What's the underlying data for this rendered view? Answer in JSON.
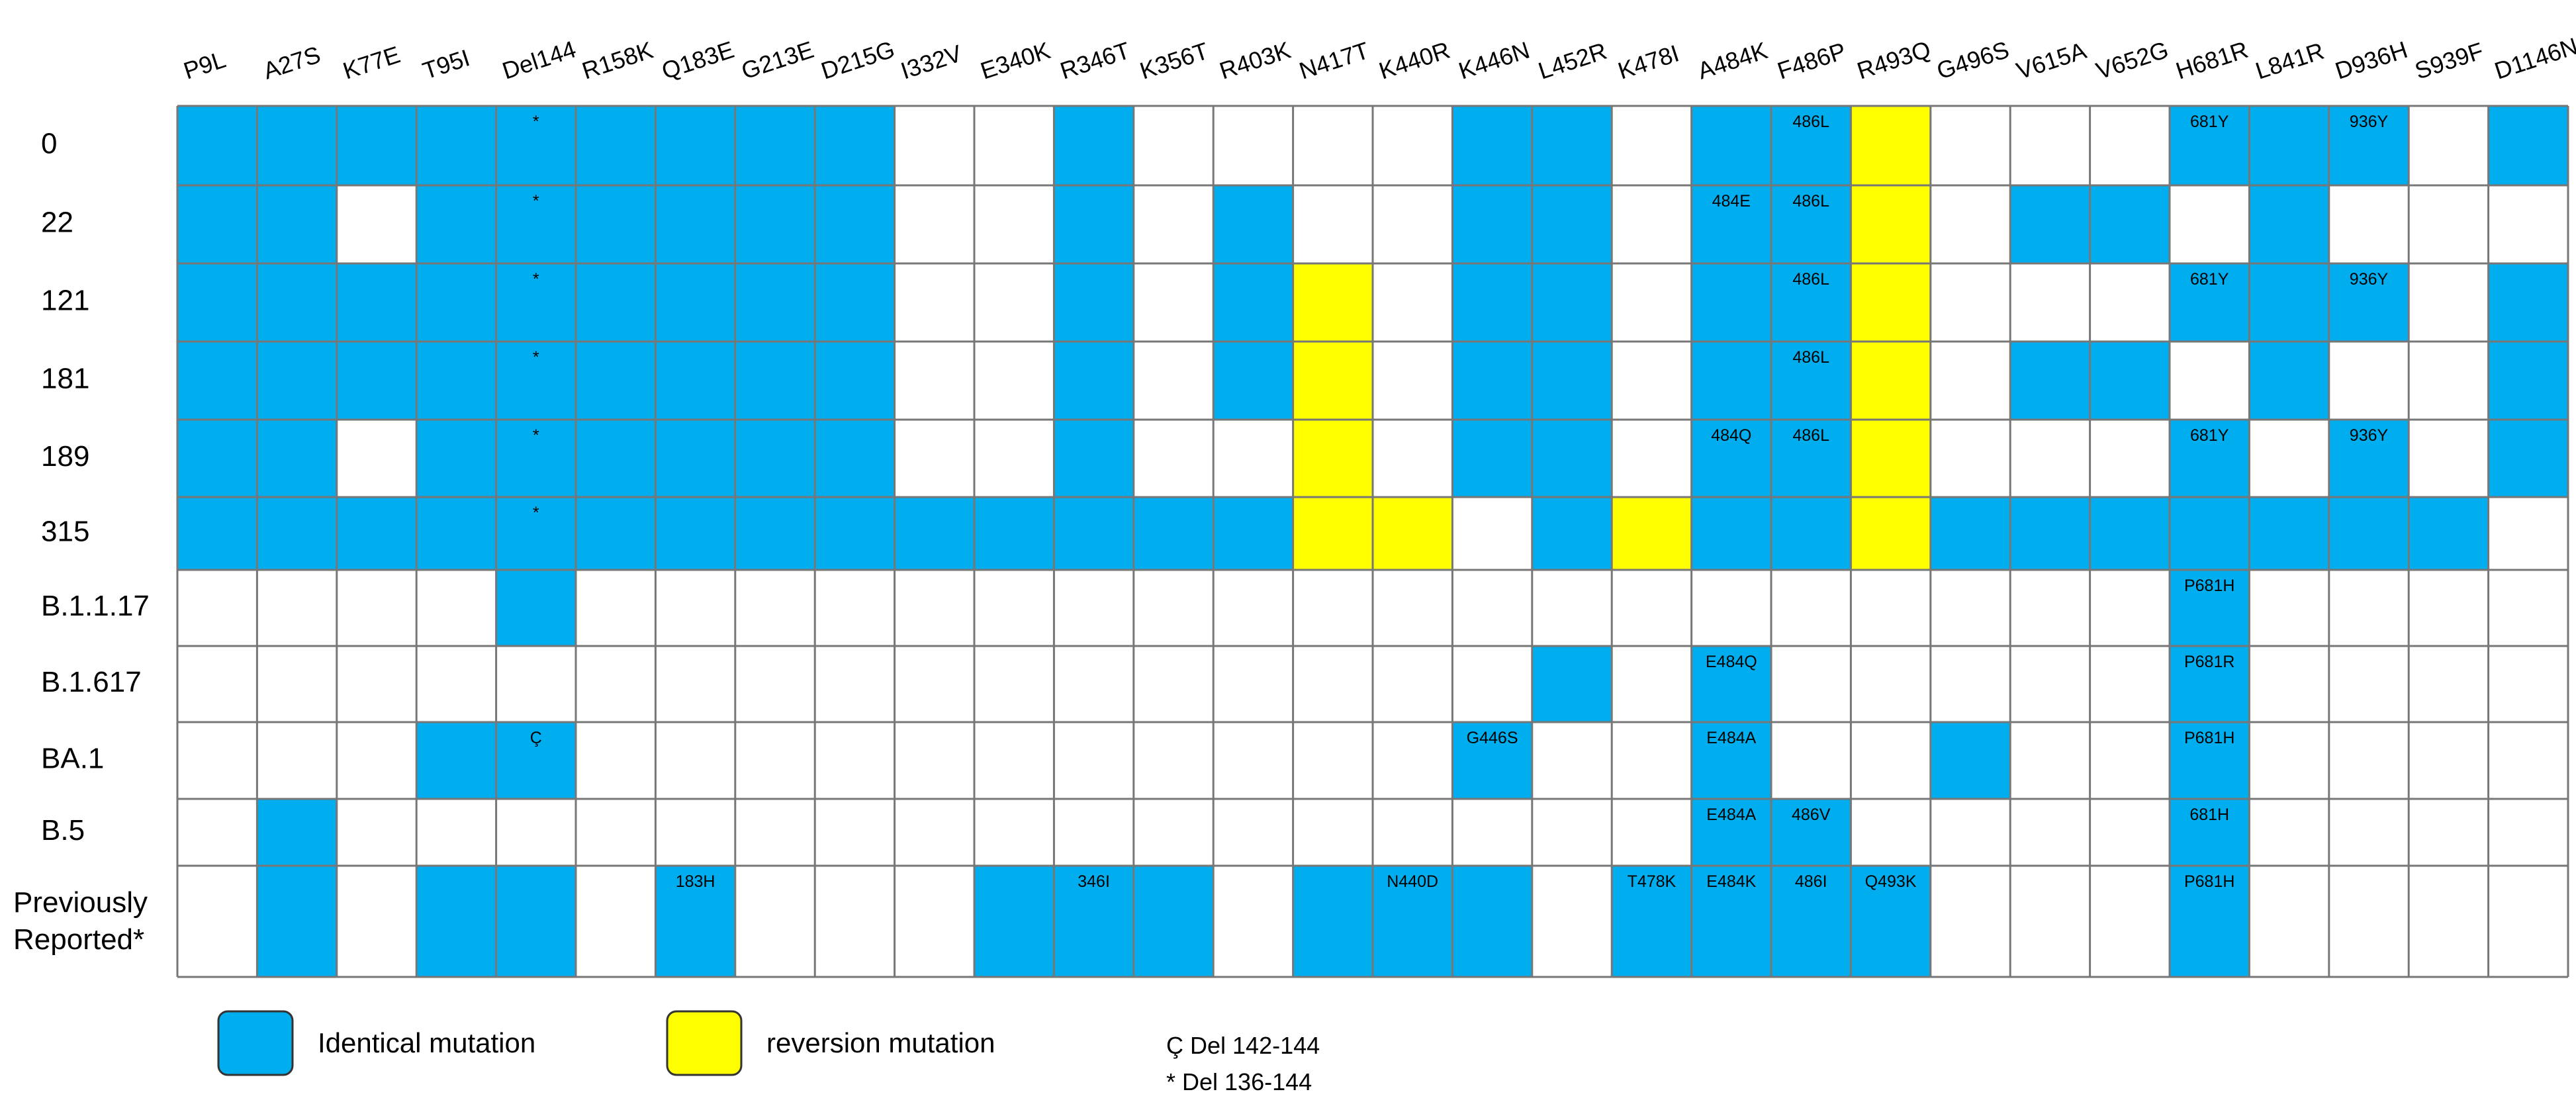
{
  "chart_data": {
    "type": "heatmap",
    "columns": [
      "P9L",
      "A27S",
      "K77E",
      "T95I",
      "Del144",
      "R158K",
      "Q183E",
      "G213E",
      "D215G",
      "I332V",
      "E340K",
      "R346T",
      "K356T",
      "R403K",
      "N417T",
      "K440R",
      "K446N",
      "L452R",
      "K478I",
      "A484K",
      "F486P",
      "R493Q",
      "G496S",
      "V615A",
      "V652G",
      "H681R",
      "L841R",
      "D936H",
      "S939F",
      "D1146N"
    ],
    "rows": [
      {
        "label": "0",
        "cells": "BBBBBBBBBWWBWWWWBBWBBYWWWBBBWB"
      },
      {
        "label": "22",
        "cells": "BBWBBBBBBWWBWBWWBBWBBYWBBWBWWW"
      },
      {
        "label": "121",
        "cells": "BBBBBBBBBWWBWBYWBBWBBYWWWBBBWB"
      },
      {
        "label": "181",
        "cells": "BBBBBBBBBWWBWBYWBBWBBYWBBWBWWB"
      },
      {
        "label": "189",
        "cells": "BBWBBBBBBWWBWWYWBBWBBYWWWBWBWB"
      },
      {
        "label": "315",
        "cells": "BBBBBBBBBBBBBBYYWBYBBYBBBBBBBW"
      },
      {
        "label": "B.1.1.17",
        "cells": "WWWWBWWWWWWWWWWWWWWWWWWWWBWWWW"
      },
      {
        "label": "B.1.617",
        "cells": "WWWWWWWWWWWWWWWWWBWBWWWWWBWWWW"
      },
      {
        "label": "BA.1",
        "cells": "WWWBBWWWWWWWWWWWBWWBWWBWWBWWWW"
      },
      {
        "label": "B.5",
        "cells": "WBWWWWWWWWWWWWWWWWWBBWWWWBWWWW"
      },
      {
        "label": "Previously Reported*",
        "label_lines": [
          "Previously",
          "Reported*"
        ],
        "cells": "WBWBBWBWWWBBBWBBBWBBBBWWWBWWWW"
      }
    ],
    "cell_labels": [
      {
        "row": 0,
        "col": 4,
        "text": "*"
      },
      {
        "row": 0,
        "col": 20,
        "text": "486L"
      },
      {
        "row": 0,
        "col": 25,
        "text": "681Y"
      },
      {
        "row": 0,
        "col": 27,
        "text": "936Y"
      },
      {
        "row": 1,
        "col": 4,
        "text": "*"
      },
      {
        "row": 1,
        "col": 19,
        "text": "484E"
      },
      {
        "row": 1,
        "col": 20,
        "text": "486L"
      },
      {
        "row": 2,
        "col": 4,
        "text": "*"
      },
      {
        "row": 2,
        "col": 20,
        "text": "486L"
      },
      {
        "row": 2,
        "col": 25,
        "text": "681Y"
      },
      {
        "row": 2,
        "col": 27,
        "text": "936Y"
      },
      {
        "row": 3,
        "col": 4,
        "text": "*"
      },
      {
        "row": 3,
        "col": 20,
        "text": "486L"
      },
      {
        "row": 4,
        "col": 4,
        "text": "*"
      },
      {
        "row": 4,
        "col": 19,
        "text": "484Q"
      },
      {
        "row": 4,
        "col": 20,
        "text": "486L"
      },
      {
        "row": 4,
        "col": 25,
        "text": "681Y"
      },
      {
        "row": 4,
        "col": 27,
        "text": "936Y"
      },
      {
        "row": 5,
        "col": 4,
        "text": "*"
      },
      {
        "row": 6,
        "col": 25,
        "text": "P681H"
      },
      {
        "row": 7,
        "col": 19,
        "text": "E484Q"
      },
      {
        "row": 7,
        "col": 25,
        "text": "P681R"
      },
      {
        "row": 8,
        "col": 4,
        "text": "Ç"
      },
      {
        "row": 8,
        "col": 16,
        "text": "G446S"
      },
      {
        "row": 8,
        "col": 19,
        "text": "E484A"
      },
      {
        "row": 8,
        "col": 25,
        "text": "P681H"
      },
      {
        "row": 9,
        "col": 19,
        "text": "E484A"
      },
      {
        "row": 9,
        "col": 20,
        "text": "486V"
      },
      {
        "row": 9,
        "col": 25,
        "text": "681H"
      },
      {
        "row": 10,
        "col": 6,
        "text": "183H"
      },
      {
        "row": 10,
        "col": 11,
        "text": "346I"
      },
      {
        "row": 10,
        "col": 15,
        "text": "N440D"
      },
      {
        "row": 10,
        "col": 18,
        "text": "T478K"
      },
      {
        "row": 10,
        "col": 19,
        "text": "E484K"
      },
      {
        "row": 10,
        "col": 20,
        "text": "486I"
      },
      {
        "row": 10,
        "col": 21,
        "text": "Q493K"
      },
      {
        "row": 10,
        "col": 25,
        "text": "P681H"
      }
    ],
    "legend": [
      {
        "key": "B",
        "label": "Identical mutation",
        "color": "#00AEEF"
      },
      {
        "key": "Y",
        "label": "reversion mutation",
        "color": "#FFFF00"
      }
    ],
    "notes": [
      "Ç  Del 142-144",
      "* Del 136-144"
    ],
    "colors": {
      "identical": "#00AEEF",
      "reversion": "#FFFF00",
      "empty": "#FFFFFF",
      "grid": "#777777"
    }
  }
}
